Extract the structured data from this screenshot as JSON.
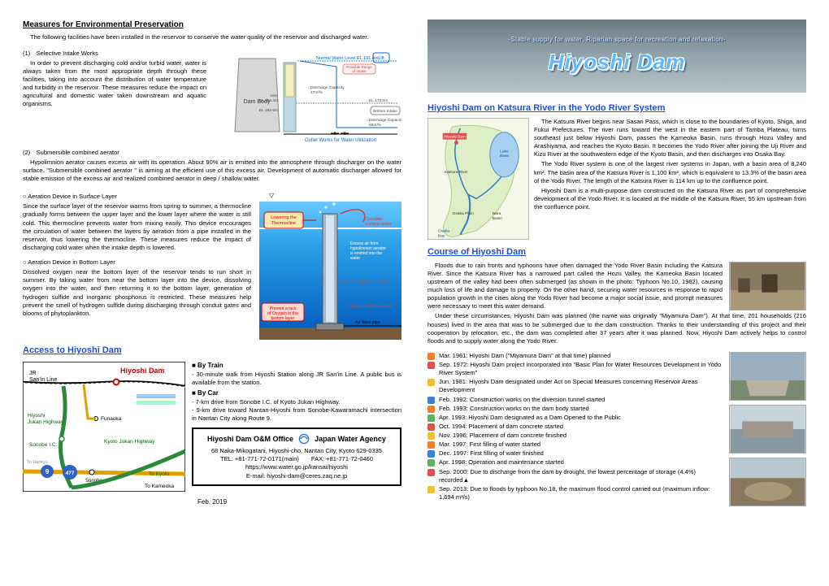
{
  "left": {
    "h1": "Measures for Environmental Preservation",
    "intro": "The following facilities have been installed in the reservoir to conserve the water quality of the reservoir and discharged water.",
    "item1_title": "(1)　Selective Intake Works",
    "item1_body": "In order to prevent discharging cold and/or turbid water, water is always taken from the most appropriate depth through these facilities, taking into account the distribution of water temperature and turbidity in the reservoir. These measures reduce the impact on agricultural and domestic water taken downstream and aquatic organisms.",
    "intake_labels": {
      "dam": "Dam Body",
      "nwl": "Normal Water Level  EL.191.4m",
      "lwl": "LWL\nEL.154.4m",
      "lift": "Lift",
      "range": "Possible Range\nof Intake",
      "cap1": "Discharge Capacity\n47m³/s",
      "el182": "EL.182.6m",
      "el173": "EL.173.0m",
      "bottom": "Bottom Intake",
      "cap2": "Discharge Capacity\n55m³/s",
      "outlet": "Outlet Works for Water Utilization"
    },
    "item2_title": "(2)　Submersible combined aerator",
    "item2_body": "Hypolimnion aerator causes excess air with its operation. About 90% air is emitted into the atmosphere through discharger on the water surface. \"Submersible combined aerator \" is aiming at the efficient use of this excess air. Development of automatic discharger allowed for stable emission of the excess air and realized combined aerator in deep / shallow water.",
    "surf_title": "○ Aeration Device in Surface Layer",
    "surf_body": "Since the surface layer of the reservoir warms from spring to summer, a thermocline gradually forms between the upper layer and the lower layer where the water is still cold. This thermocline prevents water from mixing easily. This device encourages the circulation of water between the layers by aeration from a pipe installed in the reservoir, thus lowering the thermocline. These measures reduce the impact of discharging cold water when the intake depth is lowered.",
    "bot_title": "○ Aeration Device in Bottom Layer",
    "bot_body": "Dissolved oxygen near the bottom layer of the reservoir tends to run short in summer. By taking water from near the bottom layer into the device, dissolving oxygen into the water, and then returning it to the bottom layer, generation of hydrogen sulfide and inorganic phosphorus is restricted. These measures help prevent the smell of hydrogen sulfide during discharging through conduit gates and blooms of phytoplankton.",
    "aer_labels": {
      "low": "Lowering the\nThermocline",
      "circ": "Circulate\nsurface water",
      "excess": "Excess air from\nhypolimnion aerator\nis emitted into the\nwater",
      "oxy_rich": "Oxygen-rich water",
      "prevent": "Prevent a lack\nof Oxygen in the\nbottom layer",
      "oxy_def": "Oxygen-deficient water",
      "airfeed": "Air feed pipe"
    },
    "access_h": "Access to Hiyoshi Dam",
    "map_labels": {
      "jr": "JR\nSan'in Line",
      "dam": "Hiyoshi Dam",
      "hj": "Hiyoshi\nJukan Highway",
      "fun": "Funaoka",
      "sonobe": "Sonobe I.C.",
      "r9": "9",
      "r477": "477",
      "kjh": "Kyoto Jukan Highway",
      "tokam": "To Kameoka",
      "tokyo": "To Kyoto",
      "sonobe_st": "Sonobe"
    },
    "by_train_h": "■ By Train",
    "by_train": "- 30-minute walk from Hiyoshi Station along JR San'in Line. A public bus is available from the station.",
    "by_car_h": "■ By Car",
    "by_car1": "- 7-km drive from Sonobe I.C. of Kyoto Jukan Highway.",
    "by_car2": "- 9-km drive toward Nantan-Hiyoshi from Sonobe-Kawaramachi intersection in Nantan City along Route 9.",
    "office_title_l": "Hiyoshi Dam O&M Office",
    "office_title_r": "Japan Water Agency",
    "office_addr": "68 Naka-Mikogatani, Hiyoshi-cho, Nantan City, Kyoto 629-0335",
    "office_tel": "TEL: +81-771-72-0171(main)　　FAX: +81-771-72-0460",
    "office_url": "https://www.water.go.jp/kansai/hiyoshi",
    "office_mail": "E-mail: hiyoshi-dam@ceres.zaq.ne.jp",
    "date": "Feb. 2019"
  },
  "right": {
    "banner_sub": "-Stable supply for water, Riparian space for recreation and relaxation-",
    "banner_main": "Hiyoshi Dam",
    "h_river": "Hiyoshi Dam on Katsura River in the Yodo River System",
    "riv_p1": "The Katsura River begins near Sasari Pass, which is close to the boundaries of Kyoto, Shiga, and Fukui Prefectures. The river runs toward the west in the eastern part of Tamba Plateau, turns southeast just below Hiyoshi Dam, passes the Kameoka Basin, runs through Hozu Valley and Arashiyama, and reaches the Kyoto Basin. It becomes the Yodo River after joining the Uji River and Kizu River at the southwestern edge of the Kyoto Basin, and then discharges into Osaka Bay.",
    "riv_p2": "The Yodo River system is one of the largest river systems in Japan, with a basin area of 8,240 km². The basin area of the Katsura River is 1,100 km², which is equivalent to 13.3% of the basin area of the Yodo River. The length of the Katsura River is 114 km up to the confluence point.",
    "riv_p3": "Hiyoshi Dam is a multi-purpose dam constructed on the Katsura River as part of comprehensive development of the Yodo River. It is located at the middle of the Katsura River, 55 km upstream from the confluence point.",
    "map_labels": {
      "dam": "Hiyoshi Dam",
      "lakebiwa": "Lake\nBiwa",
      "katsura": "Katsura River",
      "osaka": "Osaka Plain",
      "nara": "Nara\nBasin",
      "osaka_bay": "Osaka\nBay"
    },
    "h_course": "Course of Hiyoshi Dam",
    "crs_p1": "Floods due to rain fronts and typhoons have often damaged the Yodo River Basin including the Katsura River. Since the Katsura River has a narrowed part called the Hozu Valley, the Kameoka Basin located upstream of the valley had been often submerged (as shown in the photo: Typhoon No.10, 1982), causing much loss of life and damage to property. On the other hand, securing water resources in response to rapid population growth in the cities along the Yodo River had become a major social issue, and prompt measures were necessary to meet this water demand.",
    "crs_p2": "Under these circumstances, Hiyoshi Dam was planned (the name was originally \"Miyamura Dam\"). At that time, 201 households (216 houses) lived in the area that was to be submerged due to the dam construction. Thanks to their understanding of this project and their cooperation by relocation, etc., the dam was completed after 37 years after it was planned. Now, Hiyoshi Dam actively helps to control floods and to supply water along the Yodo River.",
    "timeline": [
      {
        "c": "#f08030",
        "t": "Mar. 1961: Hiyoshi Dam (\"Miyamura Dam\" at that time) planned"
      },
      {
        "c": "#e05050",
        "t": "Sep. 1972: Hiyoshi Dam project incorporated into \"Basic Plan for Water Resources Development in Yodo River System\""
      },
      {
        "c": "#f0c030",
        "t": "Jun. 1981: Hiyoshi Dam designated under Act on Special Measures concerning Reservoir Areas Development"
      },
      {
        "c": "#4080d0",
        "t": "Feb. 1992: Construction works on the diversion tunnel started"
      },
      {
        "c": "#f08030",
        "t": "Feb. 1993: Construction works on the dam body started"
      },
      {
        "c": "#60b060",
        "t": "Apr. 1993: Hiyoshi Dam designated as a Dam Opened to the Public"
      },
      {
        "c": "#e05050",
        "t": "Oct. 1994: Placement of dam concrete started"
      },
      {
        "c": "#f0c030",
        "t": "Nov. 1996: Placement of dam concrete finished"
      },
      {
        "c": "#f08030",
        "t": "Mar. 1997: First filling of water started"
      },
      {
        "c": "#4080d0",
        "t": "Dec. 1997: First filling of water finished"
      },
      {
        "c": "#60b060",
        "t": "Apr. 1998: Operation and maintenance started"
      },
      {
        "c": "#e05050",
        "t": "Sep. 2000: Due to discharge from the dam by drought, the lowest percentage of storage (4.4%) recorded▲"
      },
      {
        "c": "#f0c030",
        "t": "Sep. 2013: Due to floods by typhoon No.18, the maximum flood control carried out (maximum inflow: 1,694 m³/s)"
      }
    ]
  }
}
